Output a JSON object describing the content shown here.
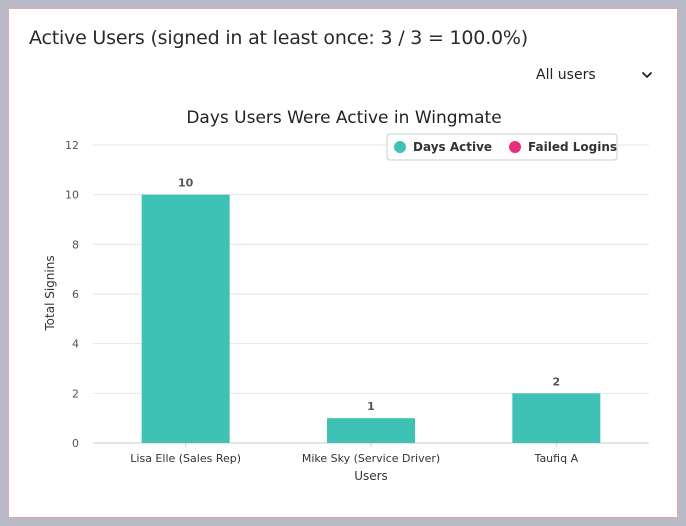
{
  "header": {
    "title": "Active Users (signed in at least once: 3 / 3 = 100.0%)"
  },
  "filter": {
    "selected": "All users",
    "icon": "chevron-down-icon"
  },
  "colors": {
    "days_active": "#40c1b5",
    "failed_logins": "#e8307a",
    "grid": "#e6e6e6",
    "axis_text": "#555555"
  },
  "chart_data": {
    "type": "bar",
    "title": "Days Users Were Active in Wingmate",
    "xlabel": "Users",
    "ylabel": "Total Signins",
    "categories": [
      "Lisa Elle (Sales Rep)",
      "Mike Sky (Service Driver)",
      "Taufiq A"
    ],
    "series": [
      {
        "name": "Days Active",
        "values": [
          10,
          1,
          2
        ]
      },
      {
        "name": "Failed Logins",
        "values": [
          0,
          0,
          0
        ]
      }
    ],
    "ylim": [
      0,
      12
    ],
    "yticks": [
      0,
      2,
      4,
      6,
      8,
      10,
      12
    ],
    "grid": true,
    "legend_position": "top-right"
  }
}
